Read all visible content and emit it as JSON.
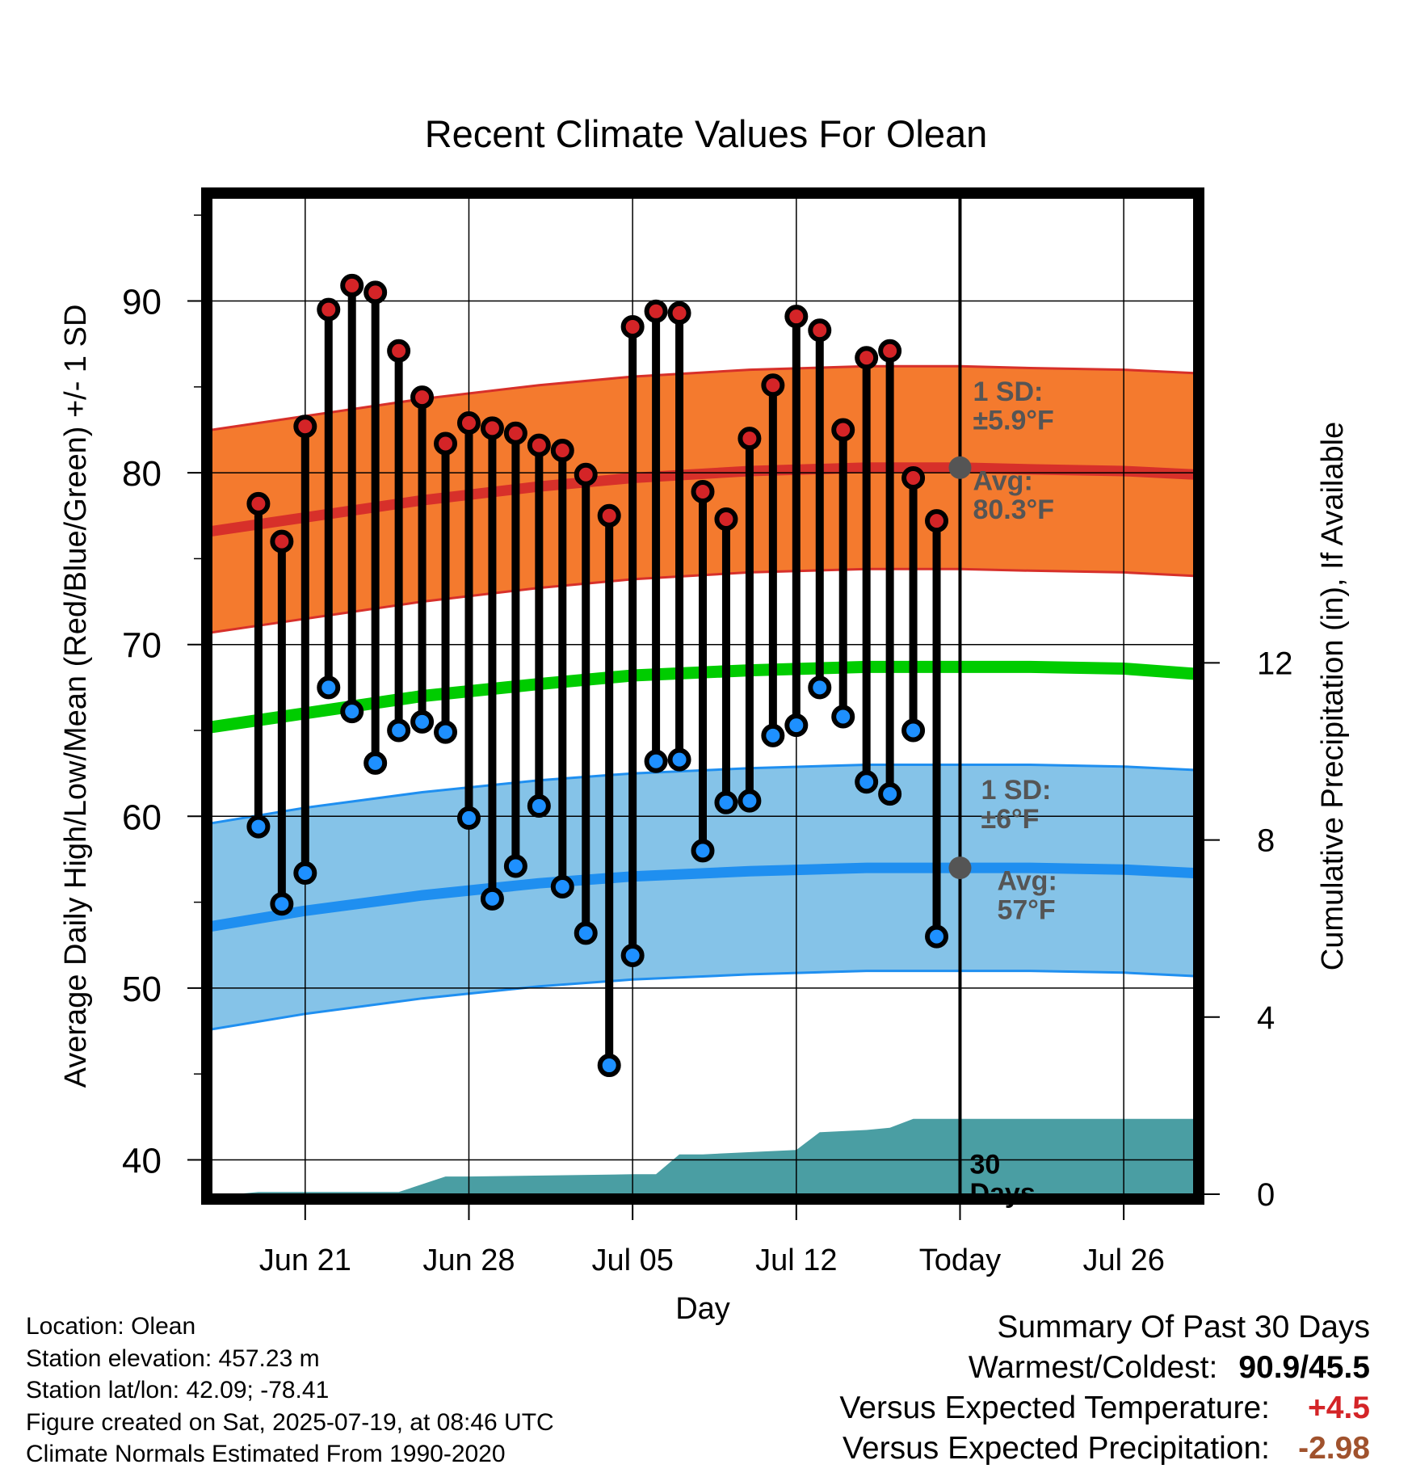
{
  "title": "Recent Climate Values For Olean",
  "chart_data": {
    "type": "line",
    "title": "Recent Climate Values For Olean",
    "xlabel": "Day",
    "ylabel": "Average Daily High/Low/Mean (Red/Blue/Green) +/- 1 SD",
    "y2label": "Cumulative Precipitation (in), If Available",
    "ylim": [
      38,
      96
    ],
    "y2lim": [
      0,
      22.5
    ],
    "y_ticks": [
      40,
      50,
      60,
      70,
      80,
      90
    ],
    "y2_ticks": [
      0,
      4,
      8,
      12
    ],
    "x_ticks": [
      {
        "date": "2025-06-21",
        "label": "Jun 21"
      },
      {
        "date": "2025-06-28",
        "label": "Jun 28"
      },
      {
        "date": "2025-07-05",
        "label": "Jul 05"
      },
      {
        "date": "2025-07-12",
        "label": "Jul 12"
      },
      {
        "date": "2025-07-19",
        "label": "Today"
      },
      {
        "date": "2025-07-26",
        "label": "Jul 26"
      }
    ],
    "xlim": [
      "2025-06-17",
      "2025-07-29"
    ],
    "today": "2025-07-19",
    "grid": true,
    "days": [
      {
        "date": "2025-06-19",
        "high": 78.2,
        "low": 59.4
      },
      {
        "date": "2025-06-20",
        "high": 76.0,
        "low": 54.9
      },
      {
        "date": "2025-06-21",
        "high": 82.7,
        "low": 56.7
      },
      {
        "date": "2025-06-22",
        "high": 89.5,
        "low": 67.5
      },
      {
        "date": "2025-06-23",
        "high": 90.9,
        "low": 66.1
      },
      {
        "date": "2025-06-24",
        "high": 90.5,
        "low": 63.1
      },
      {
        "date": "2025-06-25",
        "high": 87.1,
        "low": 65.0
      },
      {
        "date": "2025-06-26",
        "high": 84.4,
        "low": 65.5
      },
      {
        "date": "2025-06-27",
        "high": 81.7,
        "low": 64.9
      },
      {
        "date": "2025-06-28",
        "high": 82.9,
        "low": 59.9
      },
      {
        "date": "2025-06-29",
        "high": 82.6,
        "low": 55.2
      },
      {
        "date": "2025-06-30",
        "high": 82.3,
        "low": 57.1
      },
      {
        "date": "2025-07-01",
        "high": 81.6,
        "low": 60.6
      },
      {
        "date": "2025-07-02",
        "high": 81.3,
        "low": 55.9
      },
      {
        "date": "2025-07-03",
        "high": 79.9,
        "low": 53.2
      },
      {
        "date": "2025-07-04",
        "high": 77.5,
        "low": 45.5
      },
      {
        "date": "2025-07-05",
        "high": 88.5,
        "low": 51.9
      },
      {
        "date": "2025-07-06",
        "high": 89.4,
        "low": 63.2
      },
      {
        "date": "2025-07-07",
        "high": 89.3,
        "low": 63.3
      },
      {
        "date": "2025-07-08",
        "high": 78.9,
        "low": 58.0
      },
      {
        "date": "2025-07-09",
        "high": 77.3,
        "low": 60.8
      },
      {
        "date": "2025-07-10",
        "high": 82.0,
        "low": 60.9
      },
      {
        "date": "2025-07-11",
        "high": 85.1,
        "low": 64.7
      },
      {
        "date": "2025-07-12",
        "high": 89.1,
        "low": 65.3
      },
      {
        "date": "2025-07-13",
        "high": 88.3,
        "low": 67.5
      },
      {
        "date": "2025-07-14",
        "high": 82.5,
        "low": 65.8
      },
      {
        "date": "2025-07-15",
        "high": 86.7,
        "low": 62.0
      },
      {
        "date": "2025-07-16",
        "high": 87.1,
        "low": 61.3
      },
      {
        "date": "2025-07-17",
        "high": 79.7,
        "low": 65.0
      },
      {
        "date": "2025-07-18",
        "high": 77.2,
        "low": 53.0
      }
    ],
    "normals": {
      "dates": [
        "2025-06-17",
        "2025-06-21",
        "2025-06-26",
        "2025-07-01",
        "2025-07-05",
        "2025-07-10",
        "2025-07-15",
        "2025-07-19",
        "2025-07-22",
        "2025-07-26",
        "2025-07-29"
      ],
      "high_mean": [
        76.6,
        77.4,
        78.4,
        79.2,
        79.7,
        80.1,
        80.3,
        80.3,
        80.2,
        80.1,
        79.9
      ],
      "high_sd": 5.9,
      "low_mean": [
        53.6,
        54.5,
        55.4,
        56.1,
        56.5,
        56.8,
        57.0,
        57.0,
        57.0,
        56.9,
        56.7
      ],
      "low_sd": 6.0,
      "mean_mean": [
        65.2,
        66.0,
        67.0,
        67.7,
        68.2,
        68.5,
        68.7,
        68.7,
        68.7,
        68.6,
        68.3
      ]
    },
    "precip_cumulative": {
      "dates": [
        "2025-06-18",
        "2025-06-19",
        "2025-06-25",
        "2025-06-27",
        "2025-06-28",
        "2025-07-05",
        "2025-07-06",
        "2025-07-07",
        "2025-07-08",
        "2025-07-12",
        "2025-07-13",
        "2025-07-15",
        "2025-07-16",
        "2025-07-17",
        "2025-07-29"
      ],
      "values": [
        0.0,
        0.05,
        0.05,
        0.4,
        0.4,
        0.45,
        0.45,
        0.9,
        0.9,
        1.0,
        1.4,
        1.45,
        1.5,
        1.7,
        1.7
      ]
    },
    "annotations": {
      "high_sd_label": [
        "1 SD:",
        "±5.9°F"
      ],
      "high_avg_label": [
        "Avg:",
        "80.3°F"
      ],
      "low_sd_label": [
        "1 SD:",
        "±6°F"
      ],
      "low_avg_label": [
        "Avg:",
        "57°F"
      ],
      "period_label": [
        "30",
        "Days"
      ]
    },
    "colors": {
      "high_band": "#f47a2e",
      "high_line": "#d7302a",
      "low_band": "#85c3e8",
      "low_line": "#1f8ff0",
      "mean_line": "#00cc00",
      "precip": "#4a9ea3",
      "high_dot": "#d42427",
      "low_dot": "#1e90ff",
      "annotation": "#555555"
    }
  },
  "footer_left": {
    "location": "Location: Olean",
    "elevation": "Station elevation: 457.23 m",
    "latlon": "Station lat/lon: 42.09; -78.41",
    "created": "Figure created on Sat, 2025-07-19, at 08:46 UTC",
    "normals": "Climate Normals Estimated From 1990-2020"
  },
  "summary": {
    "heading": "Summary Of Past 30 Days",
    "warm_cold_label": "Warmest/Coldest:",
    "warm_cold_value": "90.9/45.5",
    "temp_label": "Versus Expected Temperature:",
    "temp_value": "+4.5",
    "temp_color": "#d42427",
    "precip_label": "Versus Expected Precipitation:",
    "precip_value": "-2.98",
    "precip_color": "#a0522d"
  }
}
